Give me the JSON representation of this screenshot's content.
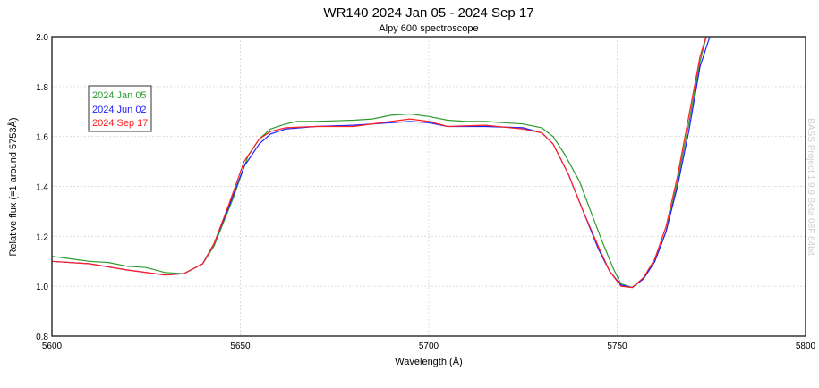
{
  "chart_data": {
    "type": "line",
    "title": "WR140 2024 Jan 05 - 2024 Sep 17",
    "subtitle": "Alpy 600 spectroscope",
    "xlabel": "Wavelength (Å)",
    "ylabel": "Relative flux (=1 around 5753Å)",
    "xlim": [
      5600,
      5800
    ],
    "ylim": [
      0.8,
      2.0
    ],
    "xticks": [
      5600,
      5650,
      5700,
      5750,
      5800
    ],
    "yticks": [
      "0.8",
      "1.0",
      "1.2",
      "1.4",
      "1.6",
      "1.8",
      "2.0"
    ],
    "grid": true,
    "legend_position": "top-left",
    "watermark": "BASS Project 1.9.9 Beta 08F 64bit",
    "series": [
      {
        "name": "2024 Jan 05",
        "color": "#2e9a2e",
        "x": [
          5600,
          5605,
          5610,
          5615,
          5620,
          5625,
          5630,
          5635,
          5640,
          5643,
          5648,
          5652,
          5655,
          5658,
          5662,
          5665,
          5670,
          5680,
          5685,
          5690,
          5695,
          5700,
          5705,
          5710,
          5715,
          5720,
          5725,
          5730,
          5733,
          5736,
          5740,
          5743,
          5746,
          5749,
          5751,
          5754,
          5757,
          5760,
          5763,
          5766,
          5769,
          5772,
          5774
        ],
        "y": [
          1.12,
          1.11,
          1.1,
          1.095,
          1.08,
          1.075,
          1.055,
          1.05,
          1.09,
          1.16,
          1.35,
          1.52,
          1.59,
          1.63,
          1.65,
          1.66,
          1.66,
          1.665,
          1.67,
          1.685,
          1.69,
          1.68,
          1.665,
          1.66,
          1.66,
          1.655,
          1.65,
          1.635,
          1.6,
          1.53,
          1.42,
          1.3,
          1.18,
          1.07,
          1.01,
          0.995,
          1.03,
          1.1,
          1.22,
          1.42,
          1.65,
          1.9,
          2.02
        ]
      },
      {
        "name": "2024 Jun 02",
        "color": "#2020ff",
        "x": [
          5600,
          5610,
          5620,
          5630,
          5635,
          5640,
          5643,
          5647,
          5651,
          5655,
          5658,
          5662,
          5670,
          5680,
          5690,
          5695,
          5700,
          5705,
          5715,
          5725,
          5730,
          5733,
          5737,
          5741,
          5745,
          5748,
          5751,
          5754,
          5757,
          5760,
          5763,
          5766,
          5769,
          5772,
          5775
        ],
        "y": [
          1.1,
          1.09,
          1.065,
          1.045,
          1.05,
          1.09,
          1.17,
          1.32,
          1.48,
          1.57,
          1.61,
          1.63,
          1.64,
          1.645,
          1.655,
          1.66,
          1.655,
          1.64,
          1.64,
          1.635,
          1.615,
          1.57,
          1.45,
          1.3,
          1.15,
          1.06,
          1.005,
          0.995,
          1.03,
          1.1,
          1.22,
          1.4,
          1.62,
          1.88,
          2.02
        ]
      },
      {
        "name": "2024 Sep 17",
        "color": "#ff2020",
        "x": [
          5600,
          5610,
          5620,
          5630,
          5635,
          5640,
          5643,
          5647,
          5651,
          5655,
          5658,
          5662,
          5670,
          5680,
          5690,
          5695,
          5700,
          5705,
          5715,
          5725,
          5730,
          5733,
          5737,
          5741,
          5745,
          5748,
          5751,
          5754,
          5757,
          5760,
          5763,
          5766,
          5769,
          5772,
          5774
        ],
        "y": [
          1.1,
          1.09,
          1.065,
          1.045,
          1.05,
          1.09,
          1.17,
          1.33,
          1.5,
          1.59,
          1.62,
          1.635,
          1.64,
          1.64,
          1.66,
          1.67,
          1.66,
          1.64,
          1.645,
          1.63,
          1.615,
          1.57,
          1.45,
          1.3,
          1.16,
          1.06,
          1.0,
          0.995,
          1.035,
          1.11,
          1.24,
          1.44,
          1.68,
          1.92,
          2.02
        ]
      }
    ]
  }
}
